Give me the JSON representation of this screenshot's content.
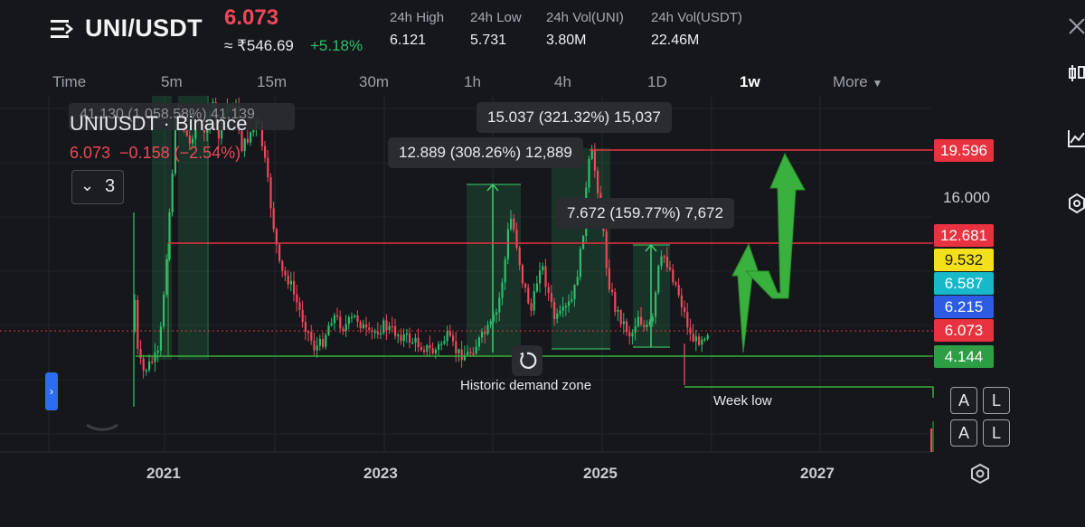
{
  "header": {
    "pair": "UNI/USDT",
    "price": "6.073",
    "price_inr": "≈ ₹546.69",
    "change": "+5.18%",
    "stats": [
      {
        "label": "24h High",
        "value": "6.121"
      },
      {
        "label": "24h Low",
        "value": "5.731"
      },
      {
        "label": "24h Vol(UNI)",
        "value": "3.80M"
      },
      {
        "label": "24h Vol(USDT)",
        "value": "22.46M"
      }
    ]
  },
  "timeframes": [
    "Time",
    "5m",
    "15m",
    "30m",
    "1h",
    "4h",
    "1D",
    "1w",
    "More"
  ],
  "active_timeframe": "1w",
  "legend": {
    "symbol": "UNIUSDT · Binance",
    "ohlc": "6.073  −0.158 (−2.54%)",
    "indicators_count": "3",
    "obscured_text": "41.130 (1,058.58%) 41,139"
  },
  "annotations": {
    "measure1": "12.889 (308.26%) 12,889",
    "measure2": "15.037 (321.32%) 15,037",
    "measure3": "7.672 (159.77%) 7,672",
    "demand_zone": "Historic demand zone",
    "week_low": "Week low"
  },
  "price_scale": {
    "tick": "16.000",
    "labels": [
      {
        "value": "19.596",
        "color": "#e8323f",
        "text_color": "#ffffff"
      },
      {
        "value": "12.681",
        "color": "#e8323f",
        "text_color": "#ffffff"
      },
      {
        "value": "9.532",
        "color": "#f4e01a",
        "text_color": "#1a1a1a"
      },
      {
        "value": "6.587",
        "color": "#17b8c9",
        "text_color": "#ffffff"
      },
      {
        "value": "6.215",
        "color": "#2d5be3",
        "text_color": "#ffffff"
      },
      {
        "value": "6.073",
        "color": "#e8323f",
        "text_color": "#ffffff"
      },
      {
        "value": "4.144",
        "color": "#2e9e45",
        "text_color": "#ffffff"
      }
    ]
  },
  "time_axis": [
    "2021",
    "2023",
    "2025",
    "2027"
  ],
  "buttons": {
    "auto": "A",
    "log": "L"
  },
  "colors": {
    "up": "#2ebd6b",
    "down": "#f0475a",
    "background": "#15171b",
    "accent_green": "#3ab03e"
  }
}
